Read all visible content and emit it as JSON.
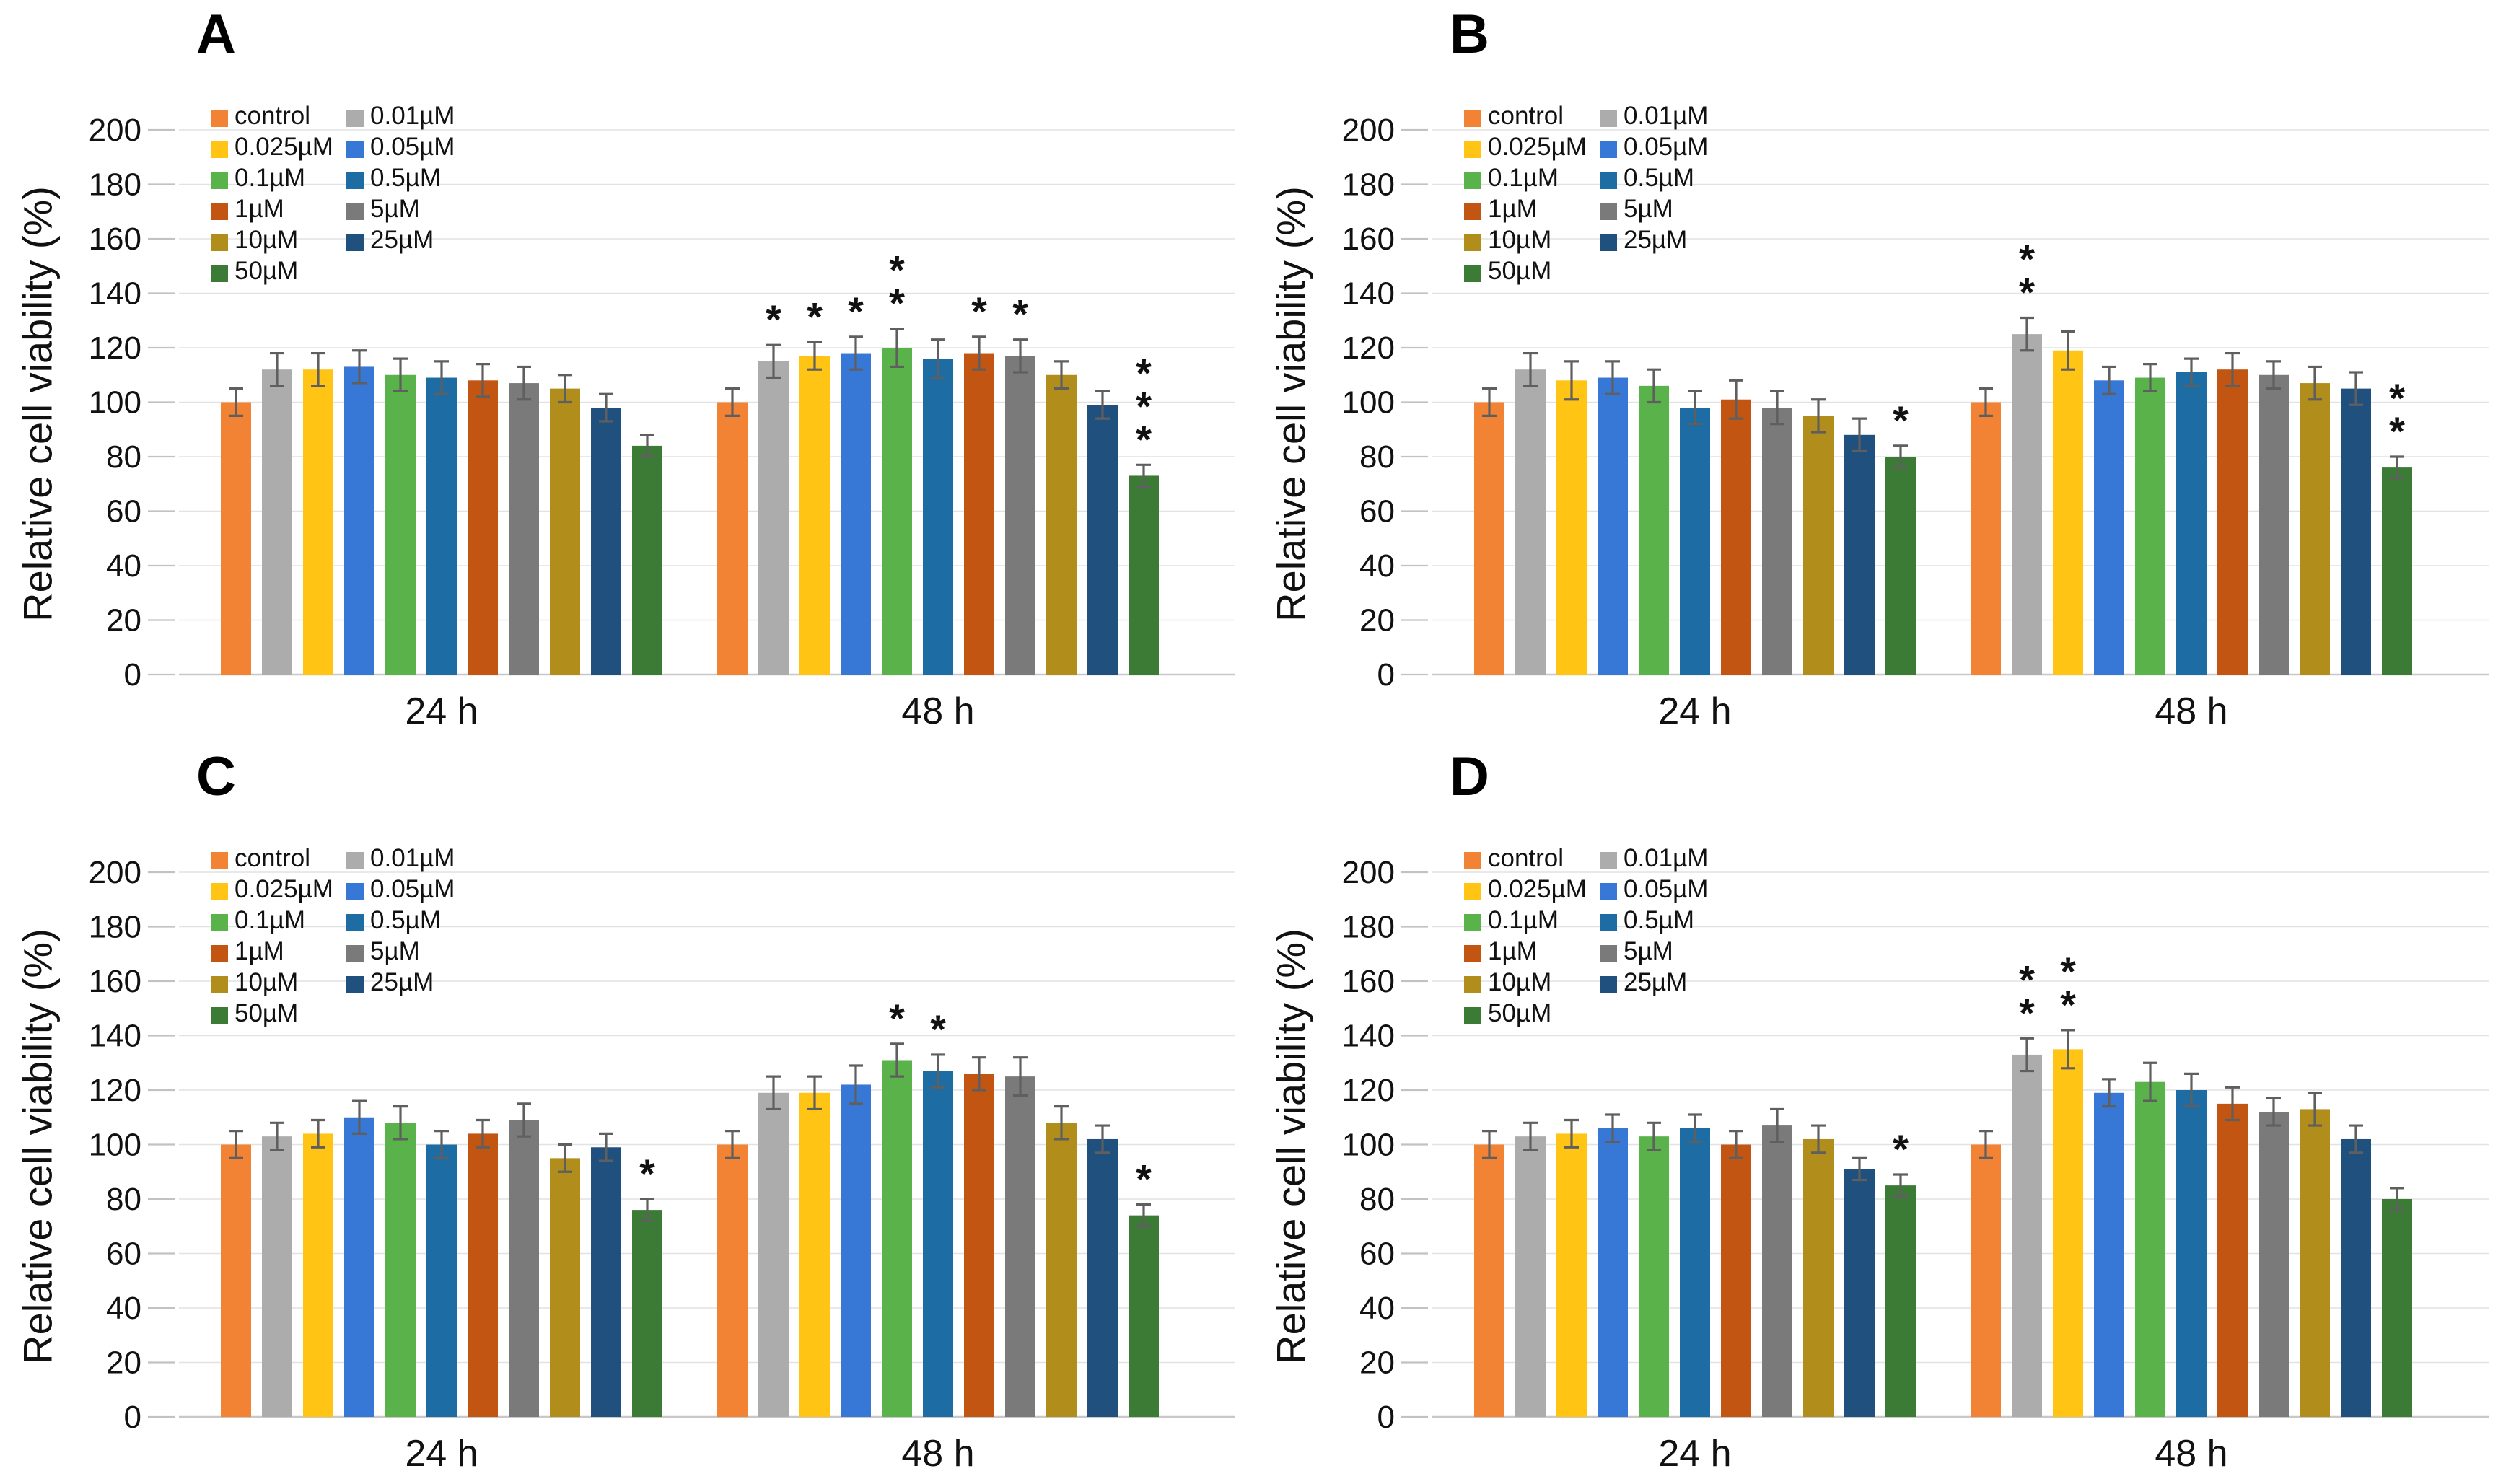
{
  "figure": {
    "background": "#FFFFFF",
    "text_color": "#111111",
    "grid_color": "#E2E2E2",
    "axis_color": "#C8C8C8",
    "tick_dash_color": "#C2C2C2",
    "error_bar_color": "#5F5F5F",
    "sig_color": "#111111",
    "legend_columns": [
      [
        0,
        2,
        4,
        6,
        8,
        10
      ],
      [
        1,
        3,
        5,
        7,
        9
      ]
    ]
  },
  "series": [
    {
      "name": "control",
      "color": "#F28234"
    },
    {
      "name": "0.01µM",
      "color": "#ACACAC"
    },
    {
      "name": "0.025µM",
      "color": "#FFC414"
    },
    {
      "name": "0.05µM",
      "color": "#3778D6"
    },
    {
      "name": "0.1µM",
      "color": "#59B24A"
    },
    {
      "name": "0.5µM",
      "color": "#1E6CA4"
    },
    {
      "name": "1µM",
      "color": "#C35513"
    },
    {
      "name": "5µM",
      "color": "#7A7A7A"
    },
    {
      "name": "10µM",
      "color": "#B18E1B"
    },
    {
      "name": "25µM",
      "color": "#20507E"
    },
    {
      "name": "50µM",
      "color": "#3C7B35"
    }
  ],
  "chart_data": [
    {
      "type": "bar",
      "panel_label": "A",
      "ylabel": "Relative cell viability (%)",
      "xlabel": "",
      "ylim": [
        0,
        200
      ],
      "ytick_step": 20,
      "grid": true,
      "legend_position": "top-left-inside",
      "categories": [
        "24 h",
        "48 h"
      ],
      "groups": [
        {
          "label": "24 h",
          "values": [
            100,
            112,
            112,
            113,
            110,
            109,
            108,
            107,
            105,
            98,
            84
          ],
          "errors": [
            5,
            6,
            6,
            6,
            6,
            6,
            6,
            6,
            5,
            5,
            4
          ],
          "sig": [
            "",
            "",
            "",
            "",
            "",
            "",
            "",
            "",
            "",
            "",
            ""
          ]
        },
        {
          "label": "48 h",
          "values": [
            100,
            115,
            117,
            118,
            120,
            116,
            118,
            117,
            110,
            99,
            73
          ],
          "errors": [
            5,
            6,
            5,
            6,
            7,
            7,
            6,
            6,
            5,
            5,
            4
          ],
          "sig": [
            "",
            "*",
            "*",
            "*",
            "**",
            "",
            "*",
            "*",
            "",
            "",
            "***"
          ]
        }
      ]
    },
    {
      "type": "bar",
      "panel_label": "B",
      "ylabel": "Relative cell viability (%)",
      "xlabel": "",
      "ylim": [
        0,
        200
      ],
      "ytick_step": 20,
      "grid": true,
      "legend_position": "top-left-inside",
      "categories": [
        "24 h",
        "48 h"
      ],
      "groups": [
        {
          "label": "24 h",
          "values": [
            100,
            112,
            108,
            109,
            106,
            98,
            101,
            98,
            95,
            88,
            80
          ],
          "errors": [
            5,
            6,
            7,
            6,
            6,
            6,
            7,
            6,
            6,
            6,
            4
          ],
          "sig": [
            "",
            "",
            "",
            "",
            "",
            "",
            "",
            "",
            "",
            "",
            "*"
          ]
        },
        {
          "label": "48 h",
          "values": [
            100,
            125,
            119,
            108,
            109,
            111,
            112,
            110,
            107,
            105,
            76
          ],
          "errors": [
            5,
            6,
            7,
            5,
            5,
            5,
            6,
            5,
            6,
            6,
            4
          ],
          "sig": [
            "",
            "**",
            "",
            "",
            "",
            "",
            "",
            "",
            "",
            "",
            "**"
          ]
        }
      ]
    },
    {
      "type": "bar",
      "panel_label": "C",
      "ylabel": "Relative cell viability (%)",
      "xlabel": "",
      "ylim": [
        0,
        200
      ],
      "ytick_step": 20,
      "grid": true,
      "legend_position": "top-left-inside",
      "categories": [
        "24 h",
        "48 h"
      ],
      "groups": [
        {
          "label": "24 h",
          "values": [
            100,
            103,
            104,
            110,
            108,
            100,
            104,
            109,
            95,
            99,
            76
          ],
          "errors": [
            5,
            5,
            5,
            6,
            6,
            5,
            5,
            6,
            5,
            5,
            4
          ],
          "sig": [
            "",
            "",
            "",
            "",
            "",
            "",
            "",
            "",
            "",
            "",
            "*"
          ]
        },
        {
          "label": "48 h",
          "values": [
            100,
            119,
            119,
            122,
            131,
            127,
            126,
            125,
            108,
            102,
            74
          ],
          "errors": [
            5,
            6,
            6,
            7,
            6,
            6,
            6,
            7,
            6,
            5,
            4
          ],
          "sig": [
            "",
            "",
            "",
            "",
            "*",
            "*",
            "",
            "",
            "",
            "",
            "*"
          ]
        }
      ]
    },
    {
      "type": "bar",
      "panel_label": "D",
      "ylabel": "Relative cell viability (%)",
      "xlabel": "",
      "ylim": [
        0,
        200
      ],
      "ytick_step": 20,
      "grid": true,
      "legend_position": "top-left-inside",
      "categories": [
        "24 h",
        "48 h"
      ],
      "groups": [
        {
          "label": "24 h",
          "values": [
            100,
            103,
            104,
            106,
            103,
            106,
            100,
            107,
            102,
            91,
            85
          ],
          "errors": [
            5,
            5,
            5,
            5,
            5,
            5,
            5,
            6,
            5,
            4,
            4
          ],
          "sig": [
            "",
            "",
            "",
            "",
            "",
            "",
            "",
            "",
            "",
            "",
            "*"
          ]
        },
        {
          "label": "48 h",
          "values": [
            100,
            133,
            135,
            119,
            123,
            120,
            115,
            112,
            113,
            102,
            80
          ],
          "errors": [
            5,
            6,
            7,
            5,
            7,
            6,
            6,
            5,
            6,
            5,
            4
          ],
          "sig": [
            "",
            "**",
            "**",
            "",
            "",
            "",
            "",
            "",
            "",
            "",
            ""
          ]
        }
      ]
    }
  ]
}
